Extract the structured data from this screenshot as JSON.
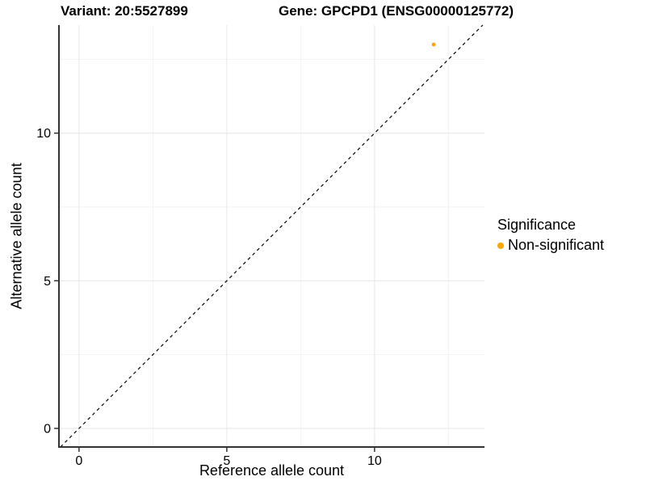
{
  "titles": {
    "variant": "Variant: 20:5527899",
    "gene": "Gene: GPCPD1 (ENSG00000125772)"
  },
  "legend": {
    "title": "Significance",
    "items": [
      {
        "label": "Non-significant",
        "color": "#FFA500"
      }
    ]
  },
  "chart_data": {
    "type": "scatter",
    "xlabel": "Reference allele count",
    "ylabel": "Alternative allele count",
    "series": [
      {
        "name": "Non-significant",
        "color": "#FFA500",
        "points": [
          {
            "x": 12,
            "y": 13
          }
        ]
      }
    ],
    "reference_line": {
      "type": "identity",
      "style": "dashed",
      "color": "#000000"
    },
    "x_breaks": [
      0,
      5,
      10
    ],
    "y_breaks": [
      0,
      5,
      10
    ],
    "x_minor_breaks": [
      2.5,
      7.5,
      12.5
    ],
    "y_minor_breaks": [
      2.5,
      7.5,
      12.5
    ],
    "xlim": [
      -0.68,
      13.72
    ],
    "ylim": [
      -0.63,
      13.66
    ],
    "grid": true,
    "legend_position": "right"
  },
  "colors": {
    "point": "#FFA500",
    "grid_major": "#E6E6E6",
    "grid_minor": "#F2F2F2",
    "axis_line": "#333333",
    "tick": "#333333",
    "text": "#000000"
  }
}
